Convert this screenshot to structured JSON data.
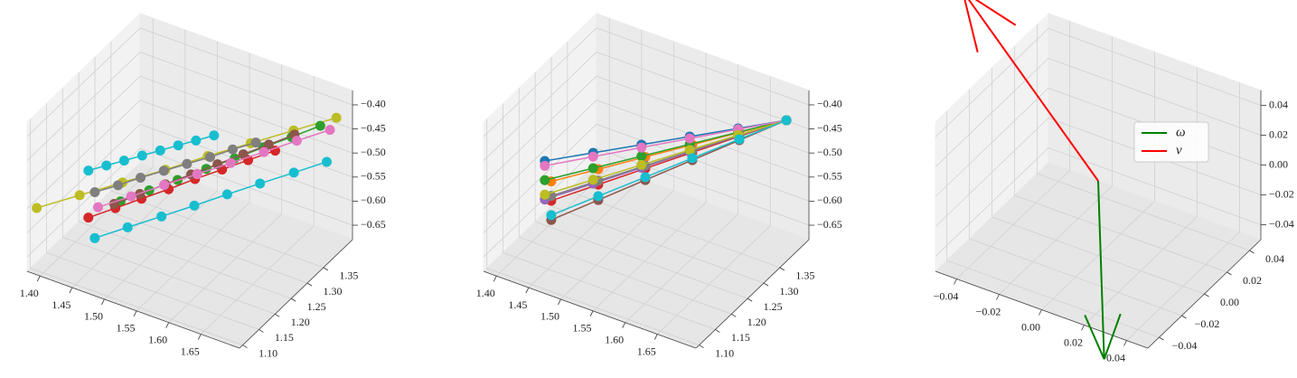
{
  "chart_data": [
    {
      "type": "line3d",
      "grid": true,
      "xlim": [
        1.38,
        1.71
      ],
      "ylim": [
        1.09,
        1.44
      ],
      "zlim": [
        -0.68,
        -0.37
      ],
      "xticks": [
        {
          "value": 1.4,
          "label": "1.40"
        },
        {
          "value": 1.45,
          "label": "1.45"
        },
        {
          "value": 1.5,
          "label": "1.50"
        },
        {
          "value": 1.55,
          "label": "1.55"
        },
        {
          "value": 1.6,
          "label": "1.60"
        },
        {
          "value": 1.65,
          "label": "1.65"
        }
      ],
      "yticks": [
        {
          "value": 1.1,
          "label": "1.10"
        },
        {
          "value": 1.15,
          "label": "1.15"
        },
        {
          "value": 1.2,
          "label": "1.20"
        },
        {
          "value": 1.25,
          "label": "1.25"
        },
        {
          "value": 1.3,
          "label": "1.30"
        },
        {
          "value": 1.35,
          "label": "1.35"
        }
      ],
      "zticks": [
        {
          "value": -0.65,
          "label": "−0.65"
        },
        {
          "value": -0.6,
          "label": "−0.60"
        },
        {
          "value": -0.55,
          "label": "−0.55"
        },
        {
          "value": -0.5,
          "label": "−0.50"
        },
        {
          "value": -0.45,
          "label": "−0.45"
        },
        {
          "value": -0.4,
          "label": "−0.40"
        }
      ],
      "series": [
        {
          "color": "#bcbd22",
          "x": [
            1.39,
            1.433,
            1.476,
            1.519,
            1.561,
            1.604,
            1.647,
            1.69
          ],
          "y": [
            1.1,
            1.147,
            1.194,
            1.241,
            1.289,
            1.336,
            1.383,
            1.43
          ],
          "z": [
            -0.55,
            -0.533,
            -0.516,
            -0.499,
            -0.481,
            -0.464,
            -0.447,
            -0.43
          ]
        },
        {
          "color": "#2ca02c",
          "x": [
            1.46,
            1.49,
            1.52,
            1.55,
            1.58,
            1.61,
            1.64,
            1.67
          ],
          "y": [
            1.22,
            1.249,
            1.277,
            1.306,
            1.334,
            1.363,
            1.391,
            1.42
          ],
          "z": [
            -0.58,
            -0.561,
            -0.543,
            -0.524,
            -0.506,
            -0.487,
            -0.469,
            -0.45
          ]
        },
        {
          "color": "#d62728",
          "x": [
            1.42,
            1.449,
            1.477,
            1.506,
            1.534,
            1.563,
            1.591,
            1.62
          ],
          "y": [
            1.2,
            1.226,
            1.251,
            1.277,
            1.303,
            1.329,
            1.354,
            1.38
          ],
          "z": [
            -0.62,
            -0.603,
            -0.586,
            -0.569,
            -0.551,
            -0.534,
            -0.517,
            -0.5
          ]
        },
        {
          "color": "#8c564b",
          "x": [
            1.45,
            1.477,
            1.504,
            1.531,
            1.559,
            1.586,
            1.613,
            1.64
          ],
          "y": [
            1.22,
            1.246,
            1.271,
            1.297,
            1.323,
            1.349,
            1.374,
            1.4
          ],
          "z": [
            -0.59,
            -0.573,
            -0.556,
            -0.539,
            -0.521,
            -0.504,
            -0.487,
            -0.47
          ]
        },
        {
          "color": "#7f7f7f",
          "x": [
            1.42,
            1.446,
            1.471,
            1.497,
            1.523,
            1.549,
            1.574,
            1.6
          ],
          "y": [
            1.22,
            1.24,
            1.26,
            1.28,
            1.3,
            1.32,
            1.34,
            1.36
          ],
          "z": [
            -0.58,
            -0.566,
            -0.551,
            -0.537,
            -0.523,
            -0.509,
            -0.494,
            -0.48
          ]
        },
        {
          "color": "#17becf",
          "x": [
            1.41,
            1.43,
            1.45,
            1.47,
            1.49,
            1.51,
            1.53,
            1.55
          ],
          "y": [
            1.22,
            1.236,
            1.251,
            1.267,
            1.283,
            1.299,
            1.314,
            1.33
          ],
          "z": [
            -0.54,
            -0.53,
            -0.52,
            -0.51,
            -0.5,
            -0.49,
            -0.48,
            -0.47
          ]
        },
        {
          "color": "#e377c2",
          "x": [
            1.43,
            1.466,
            1.501,
            1.537,
            1.573,
            1.609,
            1.644,
            1.68
          ],
          "y": [
            1.21,
            1.241,
            1.273,
            1.304,
            1.336,
            1.367,
            1.399,
            1.43
          ],
          "z": [
            -0.6,
            -0.58,
            -0.56,
            -0.54,
            -0.52,
            -0.5,
            -0.48,
            -0.46
          ]
        },
        {
          "color": "#17becf",
          "x": [
            1.44,
            1.474,
            1.509,
            1.543,
            1.577,
            1.611,
            1.646,
            1.68
          ],
          "y": [
            1.18,
            1.214,
            1.249,
            1.283,
            1.317,
            1.351,
            1.386,
            1.42
          ],
          "z": [
            -0.64,
            -0.623,
            -0.606,
            -0.589,
            -0.571,
            -0.554,
            -0.537,
            -0.52
          ]
        }
      ]
    },
    {
      "type": "line3d",
      "grid": true,
      "xlim": [
        1.38,
        1.71
      ],
      "ylim": [
        1.09,
        1.44
      ],
      "zlim": [
        -0.68,
        -0.37
      ],
      "xticks": [
        {
          "value": 1.4,
          "label": "1.40"
        },
        {
          "value": 1.45,
          "label": "1.45"
        },
        {
          "value": 1.5,
          "label": "1.50"
        },
        {
          "value": 1.55,
          "label": "1.55"
        },
        {
          "value": 1.6,
          "label": "1.60"
        },
        {
          "value": 1.65,
          "label": "1.65"
        }
      ],
      "yticks": [
        {
          "value": 1.1,
          "label": "1.10"
        },
        {
          "value": 1.15,
          "label": "1.15"
        },
        {
          "value": 1.2,
          "label": "1.20"
        },
        {
          "value": 1.25,
          "label": "1.25"
        },
        {
          "value": 1.3,
          "label": "1.30"
        },
        {
          "value": 1.35,
          "label": "1.35"
        }
      ],
      "zticks": [
        {
          "value": -0.65,
          "label": "−0.65"
        },
        {
          "value": -0.6,
          "label": "−0.60"
        },
        {
          "value": -0.55,
          "label": "−0.55"
        },
        {
          "value": -0.5,
          "label": "−0.50"
        },
        {
          "value": -0.45,
          "label": "−0.45"
        },
        {
          "value": -0.4,
          "label": "−0.40"
        }
      ],
      "series": [
        {
          "color": "#1f77b4",
          "x": [
            1.41,
            1.464,
            1.518,
            1.572,
            1.626,
            1.68
          ],
          "y": [
            1.22,
            1.262,
            1.304,
            1.346,
            1.388,
            1.43
          ],
          "z": [
            -0.52,
            -0.504,
            -0.488,
            -0.472,
            -0.456,
            -0.44
          ]
        },
        {
          "color": "#ff7f0e",
          "x": [
            1.43,
            1.48,
            1.53,
            1.58,
            1.63,
            1.68
          ],
          "y": [
            1.2,
            1.246,
            1.292,
            1.338,
            1.384,
            1.43
          ],
          "z": [
            -0.54,
            -0.52,
            -0.5,
            -0.48,
            -0.46,
            -0.44
          ]
        },
        {
          "color": "#2ca02c",
          "x": [
            1.41,
            1.464,
            1.518,
            1.572,
            1.626,
            1.68
          ],
          "y": [
            1.22,
            1.262,
            1.304,
            1.346,
            1.388,
            1.43
          ],
          "z": [
            -0.56,
            -0.536,
            -0.512,
            -0.488,
            -0.464,
            -0.44
          ]
        },
        {
          "color": "#d62728",
          "x": [
            1.43,
            1.48,
            1.53,
            1.58,
            1.63,
            1.68
          ],
          "y": [
            1.2,
            1.246,
            1.292,
            1.338,
            1.384,
            1.43
          ],
          "z": [
            -0.58,
            -0.552,
            -0.524,
            -0.496,
            -0.468,
            -0.44
          ]
        },
        {
          "color": "#9467bd",
          "x": [
            1.41,
            1.464,
            1.518,
            1.572,
            1.626,
            1.68
          ],
          "y": [
            1.22,
            1.262,
            1.304,
            1.346,
            1.388,
            1.43
          ],
          "z": [
            -0.6,
            -0.568,
            -0.536,
            -0.504,
            -0.472,
            -0.44
          ]
        },
        {
          "color": "#8c564b",
          "x": [
            1.43,
            1.48,
            1.53,
            1.58,
            1.63,
            1.68
          ],
          "y": [
            1.2,
            1.246,
            1.292,
            1.338,
            1.384,
            1.43
          ],
          "z": [
            -0.62,
            -0.584,
            -0.548,
            -0.512,
            -0.476,
            -0.44
          ]
        },
        {
          "color": "#e377c2",
          "x": [
            1.41,
            1.464,
            1.518,
            1.572,
            1.626,
            1.68
          ],
          "y": [
            1.22,
            1.262,
            1.304,
            1.346,
            1.388,
            1.43
          ],
          "z": [
            -0.53,
            -0.512,
            -0.494,
            -0.476,
            -0.458,
            -0.44
          ]
        },
        {
          "color": "#7f7f7f",
          "x": [
            1.43,
            1.48,
            1.53,
            1.58,
            1.63,
            1.68
          ],
          "y": [
            1.2,
            1.246,
            1.292,
            1.338,
            1.384,
            1.43
          ],
          "z": [
            -0.57,
            -0.544,
            -0.518,
            -0.492,
            -0.466,
            -0.44
          ]
        },
        {
          "color": "#bcbd22",
          "x": [
            1.41,
            1.464,
            1.518,
            1.572,
            1.626,
            1.68
          ],
          "y": [
            1.22,
            1.262,
            1.304,
            1.346,
            1.388,
            1.43
          ],
          "z": [
            -0.59,
            -0.56,
            -0.53,
            -0.5,
            -0.47,
            -0.44
          ]
        },
        {
          "color": "#17becf",
          "x": [
            1.43,
            1.48,
            1.53,
            1.58,
            1.63,
            1.68
          ],
          "y": [
            1.2,
            1.246,
            1.292,
            1.338,
            1.384,
            1.43
          ],
          "z": [
            -0.61,
            -0.576,
            -0.542,
            -0.508,
            -0.474,
            -0.44
          ]
        }
      ]
    },
    {
      "type": "quiver3d",
      "grid": true,
      "legend": "upper right",
      "xlim": [
        -0.05,
        0.05
      ],
      "ylim": [
        -0.05,
        0.05
      ],
      "zlim": [
        -0.05,
        0.05
      ],
      "xticks": [
        {
          "value": -0.04,
          "label": "−0.04"
        },
        {
          "value": -0.02,
          "label": "−0.02"
        },
        {
          "value": 0,
          "label": "0.00"
        },
        {
          "value": 0.02,
          "label": "0.02"
        },
        {
          "value": 0.04,
          "label": "0.04"
        }
      ],
      "yticks": [
        {
          "value": -0.04,
          "label": "−0.04"
        },
        {
          "value": -0.02,
          "label": "−0.02"
        },
        {
          "value": 0,
          "label": "0.00"
        },
        {
          "value": 0.02,
          "label": "0.02"
        },
        {
          "value": 0.04,
          "label": "0.04"
        }
      ],
      "zticks": [
        {
          "value": -0.04,
          "label": "−0.04"
        },
        {
          "value": -0.02,
          "label": "−0.02"
        },
        {
          "value": 0,
          "label": "0.00"
        },
        {
          "value": 0.02,
          "label": "0.02"
        },
        {
          "value": 0.04,
          "label": "0.04"
        }
      ],
      "series": [
        {
          "name": "ω",
          "color": "#008000",
          "x": [
            0,
            0.039
          ],
          "y": [
            0,
            -0.068
          ],
          "z": [
            0,
            -0.05
          ]
        },
        {
          "name": "v",
          "color": "#ff0000",
          "x": [
            0,
            -0.0714
          ],
          "y": [
            0,
            0.0143
          ],
          "z": [
            0,
            0.08
          ]
        }
      ]
    }
  ]
}
